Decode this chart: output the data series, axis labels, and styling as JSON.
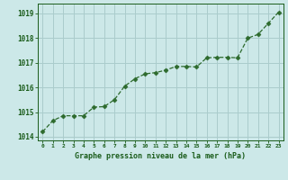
{
  "x": [
    0,
    1,
    2,
    3,
    4,
    5,
    6,
    7,
    8,
    9,
    10,
    11,
    12,
    13,
    14,
    15,
    16,
    17,
    18,
    19,
    20,
    21,
    22,
    23
  ],
  "y": [
    1014.2,
    1014.65,
    1014.85,
    1014.85,
    1014.85,
    1015.2,
    1015.22,
    1015.5,
    1016.05,
    1016.35,
    1016.55,
    1016.6,
    1016.7,
    1016.85,
    1016.85,
    1016.83,
    1017.2,
    1017.22,
    1017.22,
    1017.2,
    1018.0,
    1018.15,
    1018.6,
    1019.05
  ],
  "line_color": "#2d6a2d",
  "marker": "D",
  "marker_size": 2.5,
  "background_color": "#cce8e8",
  "grid_color": "#aacccc",
  "xlabel": "Graphe pression niveau de la mer (hPa)",
  "xlabel_color": "#1a5c1a",
  "tick_color": "#1a5c1a",
  "ylim": [
    1013.85,
    1019.4
  ],
  "xlim": [
    -0.5,
    23.5
  ],
  "yticks": [
    1014,
    1015,
    1016,
    1017,
    1018,
    1019
  ],
  "xticks": [
    0,
    1,
    2,
    3,
    4,
    5,
    6,
    7,
    8,
    9,
    10,
    11,
    12,
    13,
    14,
    15,
    16,
    17,
    18,
    19,
    20,
    21,
    22,
    23
  ]
}
